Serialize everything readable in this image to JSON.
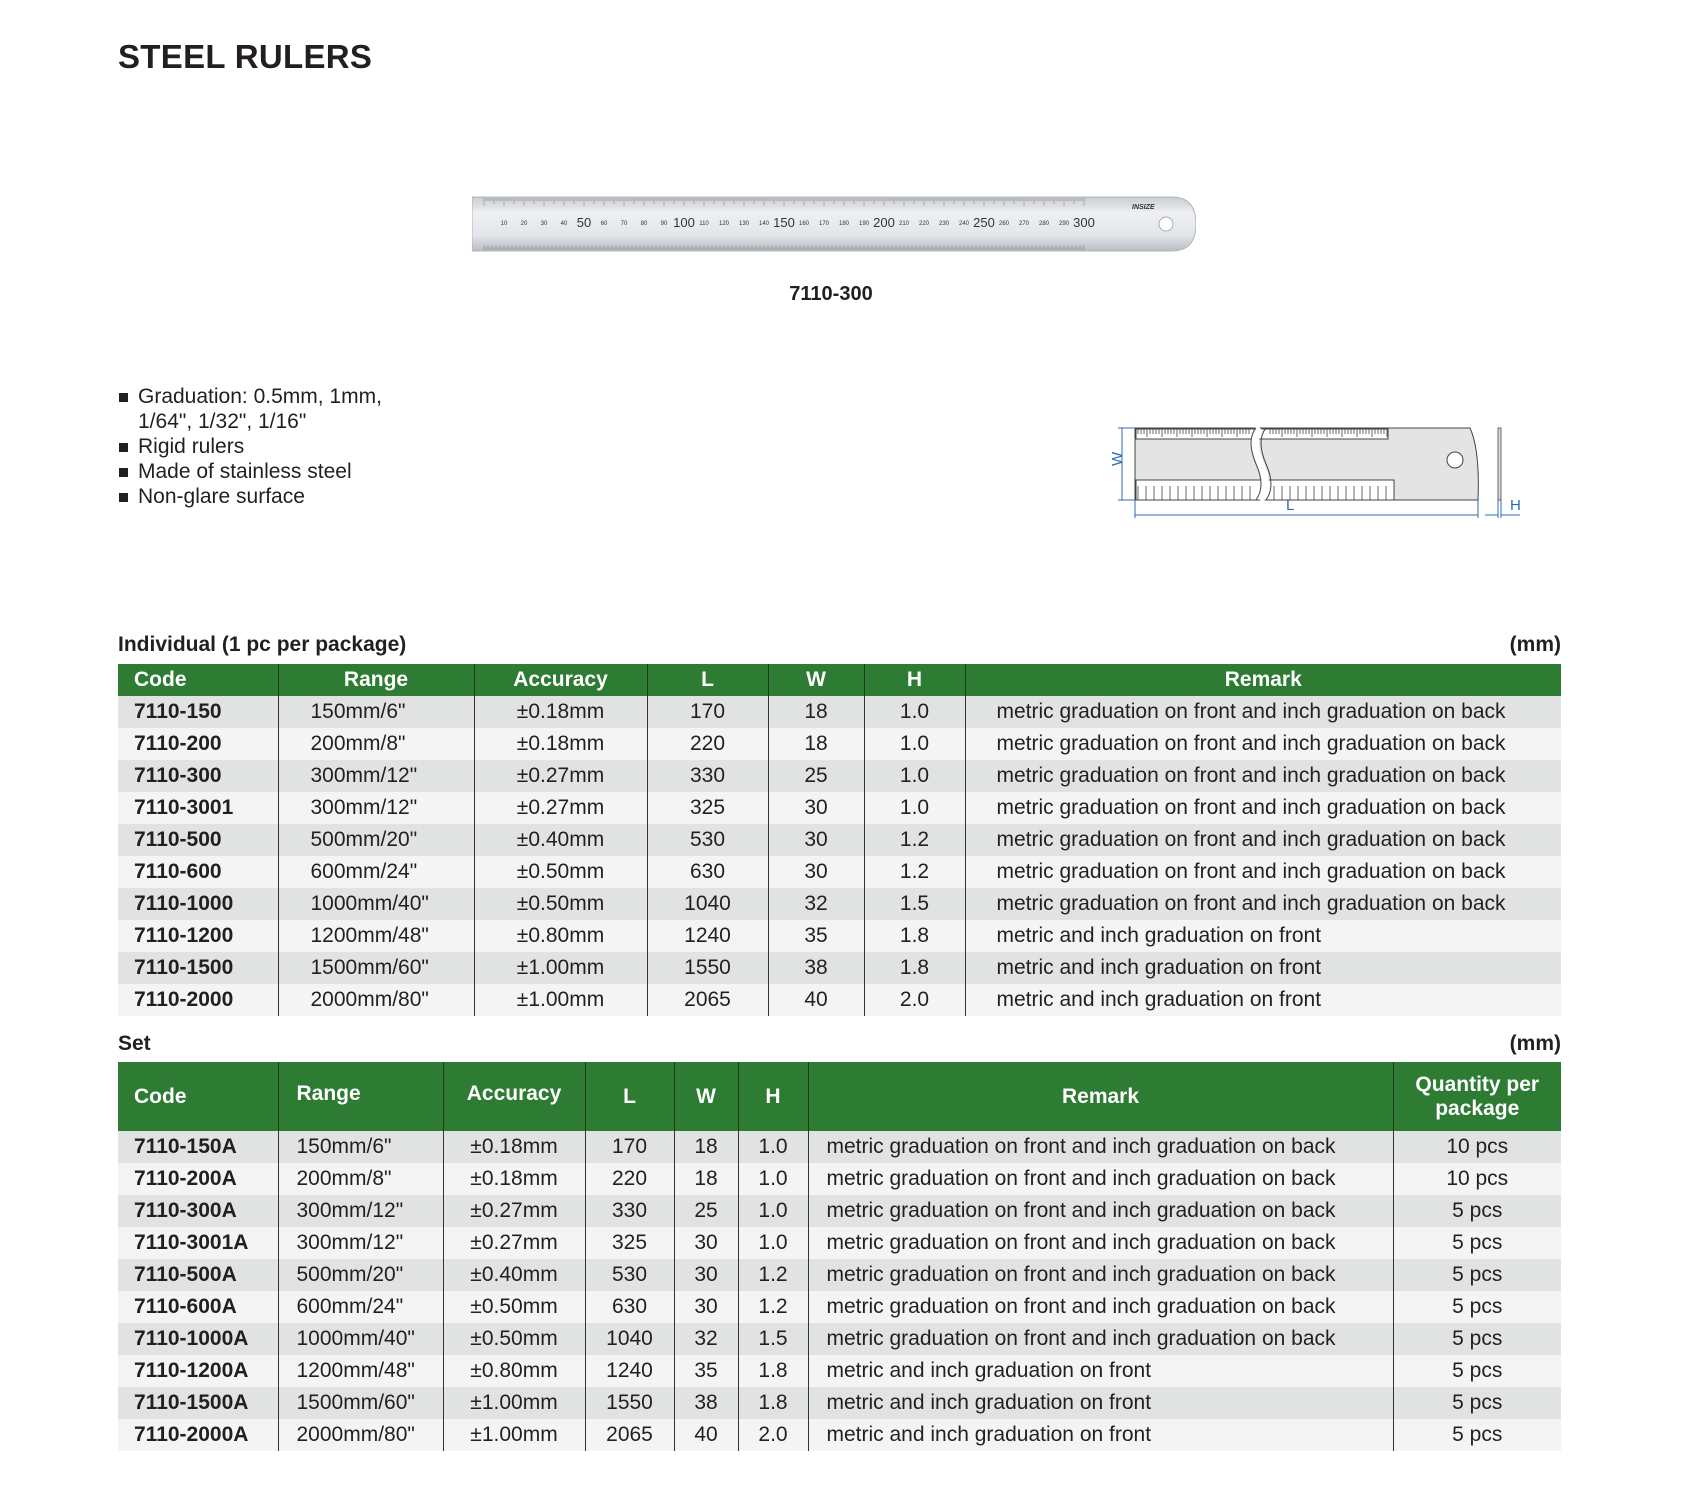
{
  "title": "STEEL RULERS",
  "product_image": {
    "caption": "7110-300",
    "brand": "INSIZE",
    "scale_labels": [
      "10",
      "20",
      "30",
      "40",
      "50",
      "60",
      "70",
      "80",
      "90",
      "100",
      "110",
      "120",
      "130",
      "140",
      "150",
      "160",
      "170",
      "180",
      "190",
      "200",
      "210",
      "220",
      "230",
      "240",
      "250",
      "260",
      "270",
      "280",
      "290",
      "300"
    ]
  },
  "features": [
    "Graduation: 0.5mm, 1mm,",
    "1/64\", 1/32\", 1/16\"",
    "Rigid rulers",
    "Made of stainless steel",
    "Non-glare surface"
  ],
  "diagram": {
    "w_label": "W",
    "l_label": "L",
    "h_label": "H",
    "line_color": "#2b6cb0"
  },
  "colors": {
    "header_green": "#2e7b33",
    "row_odd": "#e1e2e2",
    "row_even": "#f4f4f4"
  },
  "individual": {
    "label": "Individual (1 pc per package)",
    "unit": "(mm)",
    "headers": [
      "Code",
      "Range",
      "Accuracy",
      "L",
      "W",
      "H",
      "Remark"
    ],
    "rows": [
      [
        "7110-150",
        "150mm/6\"",
        "±0.18mm",
        "170",
        "18",
        "1.0",
        "metric graduation on front and inch graduation on back"
      ],
      [
        "7110-200",
        "200mm/8\"",
        "±0.18mm",
        "220",
        "18",
        "1.0",
        "metric graduation on front and inch graduation on back"
      ],
      [
        "7110-300",
        "300mm/12\"",
        "±0.27mm",
        "330",
        "25",
        "1.0",
        "metric graduation on front and inch graduation on back"
      ],
      [
        "7110-3001",
        "300mm/12\"",
        "±0.27mm",
        "325",
        "30",
        "1.0",
        "metric graduation on front and inch graduation on back"
      ],
      [
        "7110-500",
        "500mm/20\"",
        "±0.40mm",
        "530",
        "30",
        "1.2",
        "metric graduation on front and inch graduation on back"
      ],
      [
        "7110-600",
        "600mm/24\"",
        "±0.50mm",
        "630",
        "30",
        "1.2",
        "metric graduation on front and inch graduation on back"
      ],
      [
        "7110-1000",
        "1000mm/40\"",
        "±0.50mm",
        "1040",
        "32",
        "1.5",
        "metric graduation on front and inch graduation on back"
      ],
      [
        "7110-1200",
        "1200mm/48\"",
        "±0.80mm",
        "1240",
        "35",
        "1.8",
        "metric and inch graduation on front"
      ],
      [
        "7110-1500",
        "1500mm/60\"",
        "±1.00mm",
        "1550",
        "38",
        "1.8",
        "metric and inch graduation on front"
      ],
      [
        "7110-2000",
        "2000mm/80\"",
        "±1.00mm",
        "2065",
        "40",
        "2.0",
        "metric and inch graduation on front"
      ]
    ]
  },
  "set": {
    "label": "Set",
    "unit": "(mm)",
    "headers": [
      "Code",
      "Range",
      "Accuracy",
      "L",
      "W",
      "H",
      "Remark",
      "Quantity per package"
    ],
    "rows": [
      [
        "7110-150A",
        "150mm/6\"",
        "±0.18mm",
        "170",
        "18",
        "1.0",
        "metric graduation on front and inch graduation on back",
        "10 pcs"
      ],
      [
        "7110-200A",
        "200mm/8\"",
        "±0.18mm",
        "220",
        "18",
        "1.0",
        "metric graduation on front and inch graduation on back",
        "10 pcs"
      ],
      [
        "7110-300A",
        "300mm/12\"",
        "±0.27mm",
        "330",
        "25",
        "1.0",
        "metric graduation on front and inch graduation on back",
        "5 pcs"
      ],
      [
        "7110-3001A",
        "300mm/12\"",
        "±0.27mm",
        "325",
        "30",
        "1.0",
        "metric graduation on front and inch graduation on back",
        "5 pcs"
      ],
      [
        "7110-500A",
        "500mm/20\"",
        "±0.40mm",
        "530",
        "30",
        "1.2",
        "metric graduation on front and inch graduation on back",
        "5 pcs"
      ],
      [
        "7110-600A",
        "600mm/24\"",
        "±0.50mm",
        "630",
        "30",
        "1.2",
        "metric graduation on front and inch graduation on back",
        "5 pcs"
      ],
      [
        "7110-1000A",
        "1000mm/40\"",
        "±0.50mm",
        "1040",
        "32",
        "1.5",
        "metric graduation on front and inch graduation on back",
        "5 pcs"
      ],
      [
        "7110-1200A",
        "1200mm/48\"",
        "±0.80mm",
        "1240",
        "35",
        "1.8",
        "metric and inch graduation on front",
        "5 pcs"
      ],
      [
        "7110-1500A",
        "1500mm/60\"",
        "±1.00mm",
        "1550",
        "38",
        "1.8",
        "metric and inch graduation on front",
        "5 pcs"
      ],
      [
        "7110-2000A",
        "2000mm/80\"",
        "±1.00mm",
        "2065",
        "40",
        "2.0",
        "metric and inch graduation on front",
        "5 pcs"
      ]
    ]
  }
}
